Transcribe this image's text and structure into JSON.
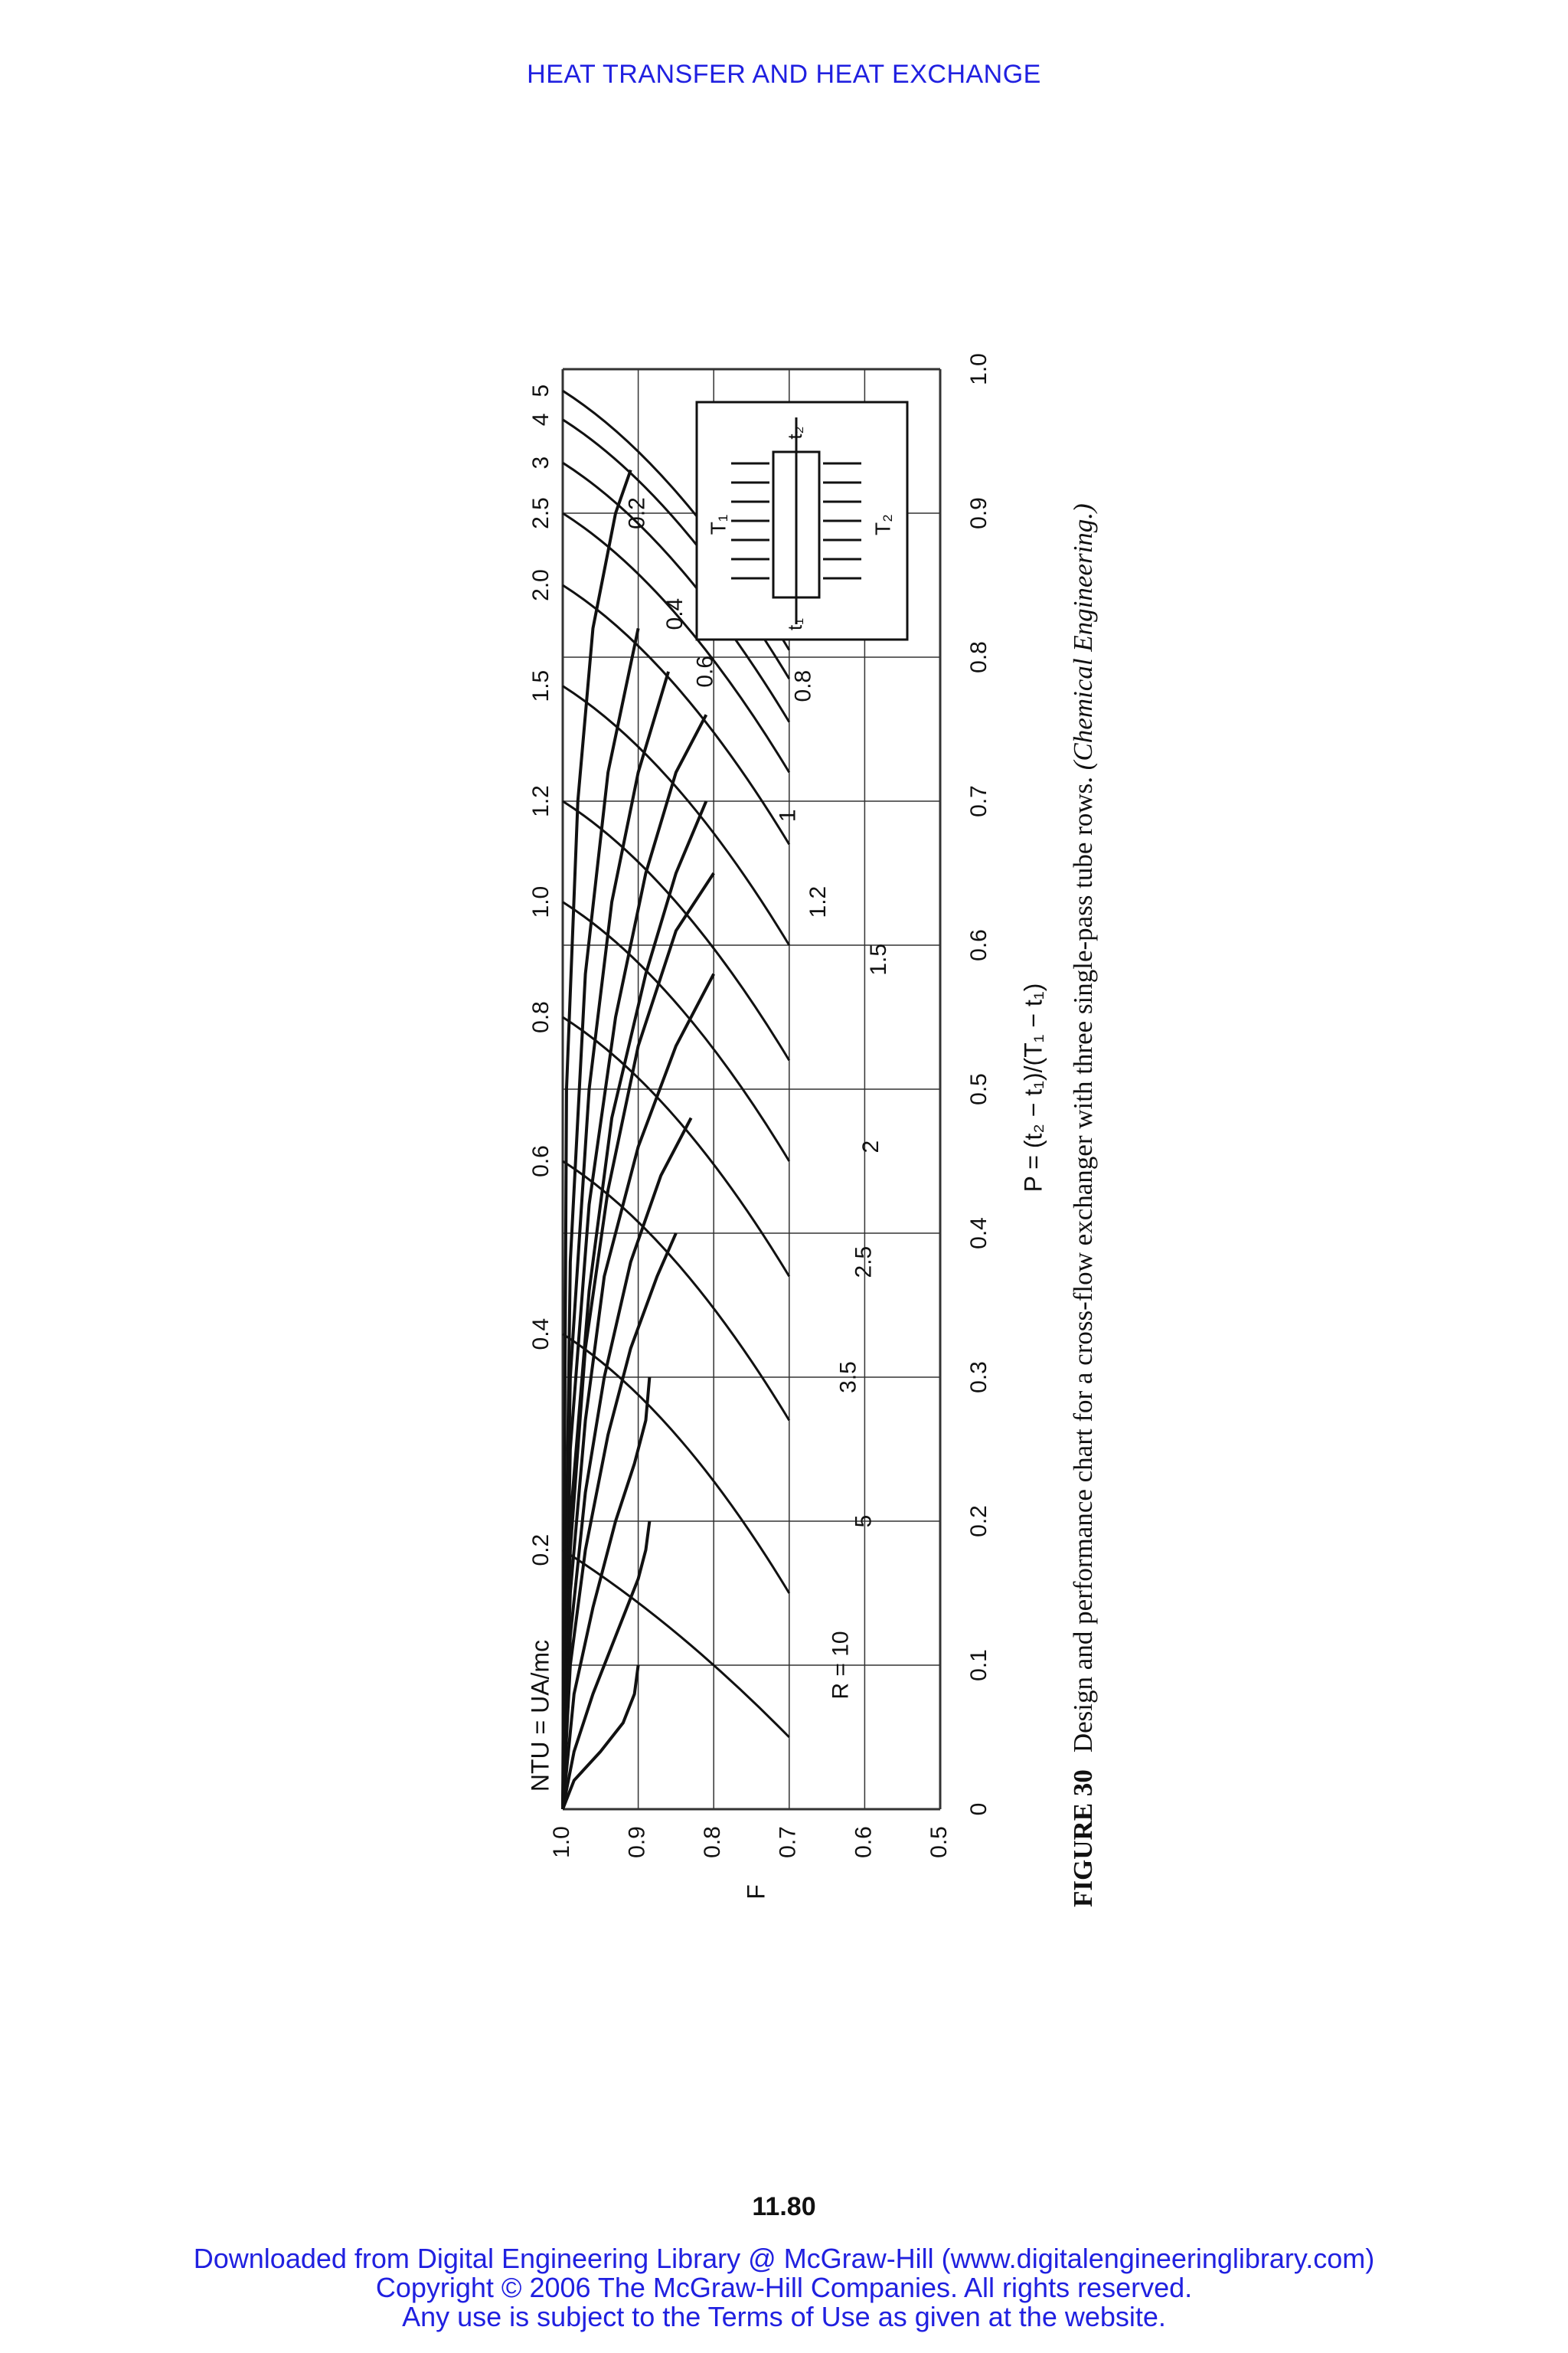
{
  "page": {
    "running_head": "HEAT TRANSFER AND HEAT EXCHANGE",
    "page_number": "11.80",
    "footer": [
      "Downloaded from Digital Engineering Library @ McGraw-Hill (www.digitalengineeringlibrary.com)",
      "Copyright © 2006 The McGraw-Hill Companies. All rights reserved.",
      "Any use is subject to the Terms of Use as given at the website."
    ],
    "caption": {
      "label": "FIGURE 30",
      "text": "Design and performance chart for a cross-flow exchanger with three single-pass tube rows.",
      "source": "(Chemical Engineering.)"
    }
  },
  "chart_data": {
    "type": "line",
    "orientation": "rotated 90° counter-clockwise on the page",
    "xlabel": "P = (t₂ − t₁)/(T₁ − t₁)",
    "ylabel": "F",
    "top_axis_label": "NTU = UA/mc",
    "xlim": [
      0,
      1.0
    ],
    "ylim": [
      0.5,
      1.0
    ],
    "x_ticks": [
      "0",
      "0.1",
      "0.2",
      "0.3",
      "0.4",
      "0.5",
      "0.6",
      "0.7",
      "0.8",
      "0.9",
      "1.0"
    ],
    "y_ticks": [
      "1.0",
      "0.9",
      "0.8",
      "0.7",
      "0.6",
      "0.5"
    ],
    "ntu_ticks": [
      {
        "label": "0.2",
        "P": 0.18
      },
      {
        "label": "0.4",
        "P": 0.33
      },
      {
        "label": "0.6",
        "P": 0.45
      },
      {
        "label": "0.8",
        "P": 0.55
      },
      {
        "label": "1.0",
        "P": 0.63
      },
      {
        "label": "1.2",
        "P": 0.7
      },
      {
        "label": "1.5",
        "P": 0.78
      },
      {
        "label": "2.0",
        "P": 0.85
      },
      {
        "label": "2.5",
        "P": 0.9
      },
      {
        "label": "3",
        "P": 0.935
      },
      {
        "label": "4",
        "P": 0.965
      },
      {
        "label": "5",
        "P": 0.985
      }
    ],
    "r_series": [
      {
        "name": "R = 10",
        "values": [
          [
            0,
            1.0
          ],
          [
            0.02,
            0.985
          ],
          [
            0.04,
            0.95
          ],
          [
            0.06,
            0.92
          ],
          [
            0.08,
            0.905
          ],
          [
            0.1,
            0.9
          ]
        ],
        "end": 0.1,
        "label_pos": [
          0.1,
          0.63
        ]
      },
      {
        "name": "5",
        "values": [
          [
            0,
            1.0
          ],
          [
            0.04,
            0.985
          ],
          [
            0.08,
            0.96
          ],
          [
            0.12,
            0.93
          ],
          [
            0.16,
            0.9
          ],
          [
            0.18,
            0.89
          ],
          [
            0.2,
            0.885
          ]
        ],
        "end": 0.2,
        "label_pos": [
          0.2,
          0.6
        ]
      },
      {
        "name": "3.5",
        "values": [
          [
            0,
            1.0
          ],
          [
            0.08,
            0.985
          ],
          [
            0.14,
            0.96
          ],
          [
            0.2,
            0.93
          ],
          [
            0.24,
            0.905
          ],
          [
            0.27,
            0.89
          ],
          [
            0.3,
            0.885
          ]
        ],
        "end": 0.3,
        "label_pos": [
          0.3,
          0.62
        ]
      },
      {
        "name": "2.5",
        "values": [
          [
            0,
            1.0
          ],
          [
            0.1,
            0.99
          ],
          [
            0.18,
            0.97
          ],
          [
            0.26,
            0.94
          ],
          [
            0.32,
            0.91
          ],
          [
            0.37,
            0.875
          ],
          [
            0.4,
            0.85
          ]
        ],
        "end": 0.4,
        "label_pos": [
          0.38,
          0.6
        ]
      },
      {
        "name": "2",
        "values": [
          [
            0,
            1.0
          ],
          [
            0.12,
            0.99
          ],
          [
            0.22,
            0.97
          ],
          [
            0.3,
            0.945
          ],
          [
            0.38,
            0.91
          ],
          [
            0.44,
            0.87
          ],
          [
            0.48,
            0.83
          ]
        ],
        "end": 0.48,
        "label_pos": [
          0.46,
          0.59
        ]
      },
      {
        "name": "1.5",
        "values": [
          [
            0,
            1.0
          ],
          [
            0.15,
            0.99
          ],
          [
            0.27,
            0.97
          ],
          [
            0.37,
            0.945
          ],
          [
            0.46,
            0.9
          ],
          [
            0.53,
            0.85
          ],
          [
            0.58,
            0.8
          ]
        ],
        "end": 0.58,
        "label_pos": [
          0.59,
          0.58
        ]
      },
      {
        "name": "1.2",
        "values": [
          [
            0,
            1.0
          ],
          [
            0.18,
            0.99
          ],
          [
            0.32,
            0.97
          ],
          [
            0.43,
            0.94
          ],
          [
            0.53,
            0.9
          ],
          [
            0.61,
            0.85
          ],
          [
            0.65,
            0.8
          ]
        ],
        "end": 0.65,
        "label_pos": [
          0.63,
          0.66
        ]
      },
      {
        "name": "1",
        "values": [
          [
            0,
            1.0
          ],
          [
            0.2,
            0.99
          ],
          [
            0.36,
            0.965
          ],
          [
            0.48,
            0.935
          ],
          [
            0.58,
            0.89
          ],
          [
            0.65,
            0.85
          ],
          [
            0.7,
            0.81
          ]
        ],
        "end": 0.7,
        "label_pos": [
          0.69,
          0.7
        ]
      },
      {
        "name": "0.8",
        "values": [
          [
            0,
            1.0
          ],
          [
            0.25,
            0.99
          ],
          [
            0.42,
            0.965
          ],
          [
            0.55,
            0.93
          ],
          [
            0.65,
            0.89
          ],
          [
            0.72,
            0.85
          ],
          [
            0.76,
            0.81
          ]
        ],
        "end": 0.76,
        "label_pos": [
          0.78,
          0.68
        ]
      },
      {
        "name": "0.6",
        "values": [
          [
            0,
            1.0
          ],
          [
            0.3,
            0.99
          ],
          [
            0.5,
            0.965
          ],
          [
            0.63,
            0.935
          ],
          [
            0.72,
            0.9
          ],
          [
            0.79,
            0.86
          ]
        ],
        "end": 0.79,
        "label_pos": [
          0.79,
          0.81
        ]
      },
      {
        "name": "0.4",
        "values": [
          [
            0,
            1.0
          ],
          [
            0.38,
            0.99
          ],
          [
            0.58,
            0.97
          ],
          [
            0.72,
            0.94
          ],
          [
            0.82,
            0.9
          ]
        ],
        "end": 0.82,
        "label_pos": [
          0.83,
          0.85
        ]
      },
      {
        "name": "0.2",
        "values": [
          [
            0,
            1.0
          ],
          [
            0.5,
            0.995
          ],
          [
            0.7,
            0.98
          ],
          [
            0.82,
            0.96
          ],
          [
            0.9,
            0.93
          ],
          [
            0.93,
            0.91
          ]
        ],
        "end": 0.93,
        "label_pos": [
          0.9,
          0.9
        ]
      }
    ],
    "inset": {
      "labels": [
        "T₁",
        "T₂",
        "t₁",
        "t₂"
      ],
      "description_labels_only": true
    }
  }
}
